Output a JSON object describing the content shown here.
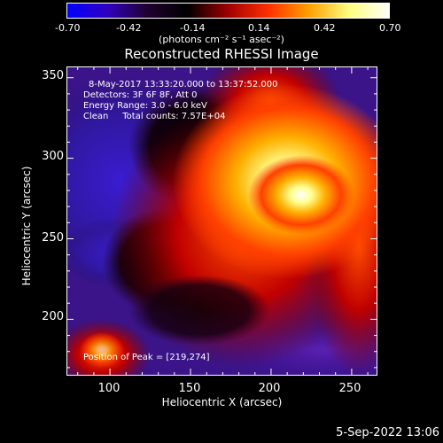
{
  "colorbar": {
    "ticks": [
      "-0.70",
      "-0.42",
      "-0.14",
      "0.14",
      "0.42",
      "0.70"
    ],
    "units": "(photons cm⁻² s⁻¹ asec⁻²)",
    "colors": [
      "#0000ff",
      "#3000c0",
      "#200030",
      "#000000",
      "#a00000",
      "#ff3000",
      "#ffa000",
      "#ffff80",
      "#ffffff"
    ]
  },
  "title": "Reconstructed RHESSI Image",
  "annotations": {
    "time_range": "8-May-2017 13:33:20.000 to 13:37:52.000",
    "detectors": "Detectors: 3F 6F 8F, Att 0",
    "energy": "Energy Range: 3.0 - 6.0 keV",
    "clean": "Clean     Total counts: 7.57E+04",
    "peak": "Position of Peak = [219,274]"
  },
  "axes": {
    "xlabel": "Heliocentric X (arcsec)",
    "ylabel": "Heliocentric Y (arcsec)",
    "xticks": [
      "100",
      "150",
      "200",
      "250"
    ],
    "yticks": [
      "200",
      "250",
      "300",
      "350"
    ],
    "xlim": [
      73,
      266
    ],
    "ylim": [
      165,
      357
    ]
  },
  "footer": "5-Sep-2022 13:06"
}
